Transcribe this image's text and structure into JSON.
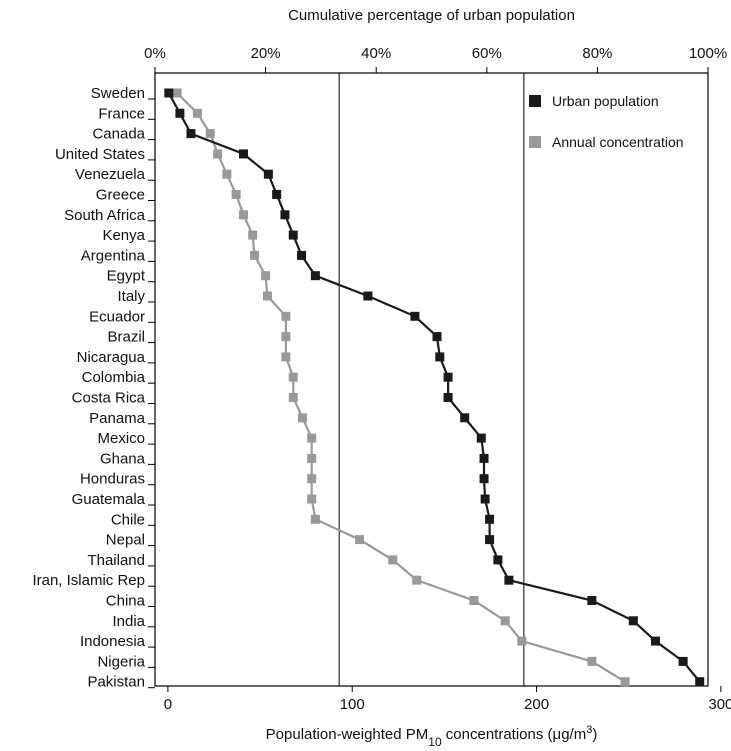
{
  "chart_data": {
    "type": "line",
    "title": "",
    "top_axis": {
      "label": "Cumulative percentage of urban population",
      "ticks": [
        {
          "value": 0,
          "label": "0%"
        },
        {
          "value": 20,
          "label": "20%"
        },
        {
          "value": 40,
          "label": "40%"
        },
        {
          "value": 60,
          "label": "60%"
        },
        {
          "value": 80,
          "label": "80%"
        },
        {
          "value": 100,
          "label": "100%"
        }
      ],
      "range": [
        0,
        100
      ]
    },
    "bottom_axis": {
      "label_prefix": "Population-weighted PM",
      "label_subscript": "10",
      "label_mid": " concentrations (",
      "label_mu": "μ",
      "label_unit": "g/m",
      "label_superscript": "3",
      "label_suffix": ")",
      "ticks": [
        {
          "value": 0,
          "label": "0"
        },
        {
          "value": 100,
          "label": "100"
        },
        {
          "value": 200,
          "label": "200"
        },
        {
          "value": 300,
          "label": "300"
        }
      ],
      "range": [
        -7,
        293
      ]
    },
    "reference_lines_top_pct": [
      33.3,
      66.7
    ],
    "categories": [
      "Sweden",
      "France",
      "Canada",
      "United States",
      "Venezuela",
      "Greece",
      "South Africa",
      "Kenya",
      "Argentina",
      "Egypt",
      "Italy",
      "Ecuador",
      "Brazil",
      "Nicaragua",
      "Colombia",
      "Costa Rica",
      "Panama",
      "Mexico",
      "Ghana",
      "Honduras",
      "Guatemala",
      "Chile",
      "Nepal",
      "Thailand",
      "Iran, Islamic Rep",
      "China",
      "India",
      "Indonesia",
      "Nigeria",
      "Pakistan"
    ],
    "series": [
      {
        "name": "Urban population",
        "axis": "top",
        "color": "#1a1a1a",
        "values": [
          2.5,
          4.5,
          6.5,
          16,
          20.5,
          22,
          23.5,
          25,
          26.5,
          29,
          38.5,
          47,
          51,
          51.5,
          53,
          53,
          56,
          59,
          59.5,
          59.5,
          59.7,
          60.5,
          60.5,
          62,
          64,
          79,
          86.5,
          90.5,
          95.5,
          98.5
        ]
      },
      {
        "name": "Annual concentration",
        "axis": "bottom",
        "color": "#999999",
        "values": [
          5,
          16,
          23,
          27,
          32,
          37,
          41,
          46,
          47,
          53,
          54,
          64,
          64,
          64,
          68,
          68,
          73,
          78,
          78,
          78,
          78,
          80,
          104,
          122,
          135,
          166,
          183,
          192,
          230,
          248
        ]
      }
    ],
    "legend": {
      "position": "top-right"
    }
  }
}
